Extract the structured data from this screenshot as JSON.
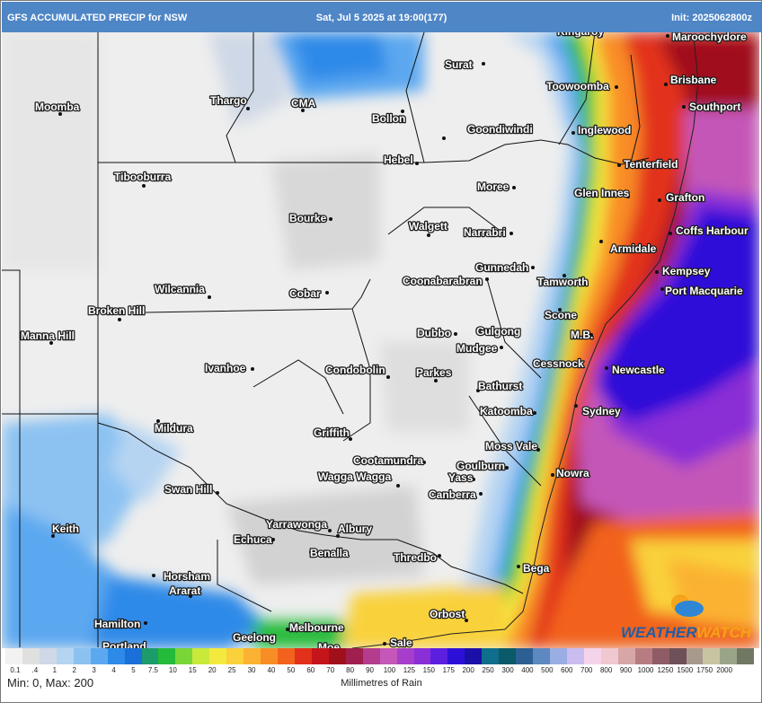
{
  "header": {
    "left": "GFS ACCUMULATED PRECIP for NSW",
    "center": "Sat, Jul 5 2025 at 19:00(177)",
    "right": "Init: 2025062800z"
  },
  "map": {
    "places": [
      {
        "name": "Moomba",
        "dot": [
          65,
          126
        ],
        "label": [
          37,
          122
        ],
        "anchor": "start"
      },
      {
        "name": "Thargo",
        "dot": [
          274,
          120
        ],
        "label": [
          232,
          115
        ],
        "anchor": "start"
      },
      {
        "name": "CMA",
        "dot": [
          335,
          122
        ],
        "label": [
          322,
          118
        ],
        "anchor": "start"
      },
      {
        "name": "Bollon",
        "dot": [
          446,
          123
        ],
        "label": [
          412,
          135
        ],
        "anchor": "start"
      },
      {
        "name": "Surat",
        "dot": [
          536,
          70
        ],
        "label": [
          493,
          75
        ],
        "anchor": "start"
      },
      {
        "name": "Kingaroy",
        "dot": [
          667,
          39
        ],
        "label": [
          618,
          38
        ],
        "anchor": "start"
      },
      {
        "name": "Maroochydore",
        "dot": [
          741,
          39
        ],
        "label": [
          746,
          44
        ],
        "anchor": "start"
      },
      {
        "name": "Toowoomba",
        "dot": [
          684,
          96
        ],
        "label": [
          606,
          99
        ],
        "anchor": "start"
      },
      {
        "name": "Brisbane",
        "dot": [
          739,
          93
        ],
        "label": [
          744,
          92
        ],
        "anchor": "start"
      },
      {
        "name": "Southport",
        "dot": [
          759,
          118
        ],
        "label": [
          765,
          122
        ],
        "anchor": "start"
      },
      {
        "name": "Goondiwindi",
        "dot": [
          492,
          153
        ],
        "label": [
          518,
          147
        ],
        "anchor": "start"
      },
      {
        "name": "Inglewood",
        "dot": [
          636,
          147
        ],
        "label": [
          641,
          148
        ],
        "anchor": "start"
      },
      {
        "name": "Hebel",
        "dot": [
          462,
          181
        ],
        "label": [
          425,
          181
        ],
        "anchor": "start"
      },
      {
        "name": "Tenterfield",
        "dot": [
          687,
          183
        ],
        "label": [
          692,
          186
        ],
        "anchor": "start"
      },
      {
        "name": "Tibooburra",
        "dot": [
          158,
          206
        ],
        "label": [
          125,
          200
        ],
        "anchor": "start"
      },
      {
        "name": "Moree",
        "dot": [
          570,
          208
        ],
        "label": [
          529,
          211
        ],
        "anchor": "start"
      },
      {
        "name": "Glen Innes",
        "dot": [
          697,
          218
        ],
        "label": [
          637,
          218
        ],
        "anchor": "start"
      },
      {
        "name": "Grafton",
        "dot": [
          732,
          222
        ],
        "label": [
          739,
          223
        ],
        "anchor": "start"
      },
      {
        "name": "Bourke",
        "dot": [
          366,
          243
        ],
        "label": [
          320,
          246
        ],
        "anchor": "start"
      },
      {
        "name": "Walgett",
        "dot": [
          475,
          261
        ],
        "label": [
          453,
          255
        ],
        "anchor": "start"
      },
      {
        "name": "Narrabri",
        "dot": [
          567,
          259
        ],
        "label": [
          514,
          262
        ],
        "anchor": "start"
      },
      {
        "name": "Coffs Harbour",
        "dot": [
          744,
          259
        ],
        "label": [
          750,
          260
        ],
        "anchor": "start"
      },
      {
        "name": "Armidale",
        "dot": [
          667,
          268
        ],
        "label": [
          677,
          280
        ],
        "anchor": "start"
      },
      {
        "name": "Gunnedah",
        "dot": [
          591,
          297
        ],
        "label": [
          527,
          301
        ],
        "anchor": "start"
      },
      {
        "name": "Kempsey",
        "dot": [
          729,
          302
        ],
        "label": [
          735,
          305
        ],
        "anchor": "start"
      },
      {
        "name": "Coonabarabran",
        "dot": [
          540,
          310
        ],
        "label": [
          446,
          316
        ],
        "anchor": "start"
      },
      {
        "name": "Tamworth",
        "dot": [
          626,
          306
        ],
        "label": [
          596,
          317
        ],
        "anchor": "start"
      },
      {
        "name": "Wilcannia",
        "dot": [
          231,
          330
        ],
        "label": [
          170,
          325
        ],
        "anchor": "start"
      },
      {
        "name": "Cobar",
        "dot": [
          362,
          325
        ],
        "label": [
          320,
          330
        ],
        "anchor": "start"
      },
      {
        "name": "Port Macquarie",
        "dot": [
          735,
          321
        ],
        "label": [
          738,
          327
        ],
        "anchor": "start"
      },
      {
        "name": "Broken Hill",
        "dot": [
          131,
          355
        ],
        "label": [
          96,
          349
        ],
        "anchor": "start"
      },
      {
        "name": "Scone",
        "dot": [
          621,
          344
        ],
        "label": [
          604,
          354
        ],
        "anchor": "start"
      },
      {
        "name": "Manna Hill",
        "dot": [
          55,
          381
        ],
        "label": [
          21,
          377
        ],
        "anchor": "start"
      },
      {
        "name": "Dubbo",
        "dot": [
          505,
          371
        ],
        "label": [
          462,
          374
        ],
        "anchor": "start"
      },
      {
        "name": "Gulgong",
        "dot": [
          547,
          371
        ],
        "label": [
          528,
          372
        ],
        "anchor": "start"
      },
      {
        "name": "M.B.",
        "dot": [
          656,
          372
        ],
        "label": [
          633,
          376
        ],
        "anchor": "start"
      },
      {
        "name": "Mudgee",
        "dot": [
          556,
          386
        ],
        "label": [
          506,
          391
        ],
        "anchor": "start"
      },
      {
        "name": "Cessnock",
        "dot": [
          646,
          407
        ],
        "label": [
          591,
          408
        ],
        "anchor": "start"
      },
      {
        "name": "Newcastle",
        "dot": [
          673,
          409
        ],
        "label": [
          679,
          415
        ],
        "anchor": "start"
      },
      {
        "name": "Ivanhoe",
        "dot": [
          279,
          410
        ],
        "label": [
          226,
          413
        ],
        "anchor": "start"
      },
      {
        "name": "Condobolin",
        "dot": [
          430,
          419
        ],
        "label": [
          360,
          415
        ],
        "anchor": "start"
      },
      {
        "name": "Parkes",
        "dot": [
          483,
          423
        ],
        "label": [
          461,
          418
        ],
        "anchor": "start"
      },
      {
        "name": "Bathurst",
        "dot": [
          530,
          434
        ],
        "label": [
          530,
          433
        ],
        "anchor": "start"
      },
      {
        "name": "Katoomba",
        "dot": [
          593,
          459
        ],
        "label": [
          532,
          461
        ],
        "anchor": "start"
      },
      {
        "name": "Sydney",
        "dot": [
          639,
          451
        ],
        "label": [
          646,
          461
        ],
        "anchor": "start"
      },
      {
        "name": "Mildura",
        "dot": [
          174,
          468
        ],
        "label": [
          170,
          480
        ],
        "anchor": "start"
      },
      {
        "name": "Griffith",
        "dot": [
          388,
          488
        ],
        "label": [
          347,
          485
        ],
        "anchor": "start"
      },
      {
        "name": "Moss Vale",
        "dot": [
          597,
          500
        ],
        "label": [
          538,
          500
        ],
        "anchor": "start"
      },
      {
        "name": "Cootamundra",
        "dot": [
          470,
          514
        ],
        "label": [
          391,
          516
        ],
        "anchor": "start"
      },
      {
        "name": "Goulburn",
        "dot": [
          562,
          520
        ],
        "label": [
          506,
          522
        ],
        "anchor": "start"
      },
      {
        "name": "Nowra",
        "dot": [
          613,
          528
        ],
        "label": [
          617,
          530
        ],
        "anchor": "start"
      },
      {
        "name": "Wagga Wagga",
        "dot": [
          441,
          540
        ],
        "label": [
          352,
          534
        ],
        "anchor": "start"
      },
      {
        "name": "Yass",
        "dot": [
          525,
          533
        ],
        "label": [
          497,
          535
        ],
        "anchor": "start"
      },
      {
        "name": "Swan Hill",
        "dot": [
          240,
          548
        ],
        "label": [
          181,
          548
        ],
        "anchor": "start"
      },
      {
        "name": "Canberra",
        "dot": [
          533,
          549
        ],
        "label": [
          475,
          554
        ],
        "anchor": "start"
      },
      {
        "name": "Keith",
        "dot": [
          57,
          596
        ],
        "label": [
          56,
          592
        ],
        "anchor": "start"
      },
      {
        "name": "Yarrawonga",
        "dot": [
          365,
          590
        ],
        "label": [
          294,
          587
        ],
        "anchor": "start"
      },
      {
        "name": "Albury",
        "dot": [
          374,
          596
        ],
        "label": [
          374,
          592
        ],
        "anchor": "start"
      },
      {
        "name": "Echuca",
        "dot": [
          302,
          600
        ],
        "label": [
          258,
          604
        ],
        "anchor": "start"
      },
      {
        "name": "Benalla",
        "dot": [
          344,
          614
        ],
        "label": [
          343,
          619
        ],
        "anchor": "start"
      },
      {
        "name": "Thredbo",
        "dot": [
          487,
          618
        ],
        "label": [
          436,
          624
        ],
        "anchor": "start"
      },
      {
        "name": "Bega",
        "dot": [
          575,
          630
        ],
        "label": [
          580,
          636
        ],
        "anchor": "start"
      },
      {
        "name": "Horsham",
        "dot": [
          169,
          640
        ],
        "label": [
          180,
          645
        ],
        "anchor": "start"
      },
      {
        "name": "Ararat",
        "dot": [
          210,
          663
        ],
        "label": [
          186,
          661
        ],
        "anchor": "start"
      },
      {
        "name": "Orbost",
        "dot": [
          517,
          690
        ],
        "label": [
          476,
          687
        ],
        "anchor": "start"
      },
      {
        "name": "Hamilton",
        "dot": [
          160,
          693
        ],
        "label": [
          103,
          698
        ],
        "anchor": "start"
      },
      {
        "name": "Melbourne",
        "dot": [
          318,
          700
        ],
        "label": [
          320,
          702
        ],
        "anchor": "start"
      },
      {
        "name": "Geelong",
        "dot": [
          277,
          713
        ],
        "label": [
          257,
          713
        ],
        "anchor": "start"
      },
      {
        "name": "Portland",
        "dot": [
          115,
          722
        ],
        "label": [
          112,
          723
        ],
        "anchor": "start"
      },
      {
        "name": "Sale",
        "dot": [
          426,
          716
        ],
        "label": [
          432,
          719
        ],
        "anchor": "start"
      },
      {
        "name": "Moe",
        "dot": [
          380,
          726
        ],
        "label": [
          352,
          724
        ],
        "anchor": "start"
      }
    ]
  },
  "legend": {
    "colors": [
      "#f2f2f2",
      "#e0e0e0",
      "#cfd8e6",
      "#b5d4f2",
      "#8cc2f2",
      "#5ca8f0",
      "#2d8ae8",
      "#1a6fd9",
      "#1c9c6a",
      "#25bb3a",
      "#79d636",
      "#c9e93a",
      "#f5e93f",
      "#f9d13a",
      "#fbb232",
      "#f98d25",
      "#f2621d",
      "#e2301a",
      "#c6141b",
      "#a0101a",
      "#a01f4f",
      "#b33d8c",
      "#c457b8",
      "#a73dcb",
      "#8a2fd6",
      "#5b1fe0",
      "#2d10d8",
      "#1a0fa6",
      "#0f6e8c",
      "#0a5a6a",
      "#2c5f92",
      "#5d88c0",
      "#9aaee3",
      "#c9bdf0",
      "#f5d3ea",
      "#f0c8cf",
      "#d7a7a8",
      "#b77c82",
      "#8f5b65",
      "#6e5058",
      "#a79a8c",
      "#c8c4a2",
      "#9aa588",
      "#707864"
    ],
    "ticks": [
      "0.1",
      ".4",
      "1",
      "2",
      "3",
      "4",
      "5",
      "7.5",
      "10",
      "15",
      "20",
      "25",
      "30",
      "40",
      "50",
      "60",
      "70",
      "80",
      "90",
      "100",
      "125",
      "150",
      "175",
      "200",
      "250",
      "300",
      "400",
      "500",
      "600",
      "700",
      "800",
      "900",
      "1000",
      "1250",
      "1500",
      "1750",
      "2000",
      ""
    ],
    "minmax": "Min: 0, Max: 200",
    "units": "Millimetres of Rain"
  },
  "logo": {
    "part1": "WEATHER",
    "part2": "WATCH"
  }
}
